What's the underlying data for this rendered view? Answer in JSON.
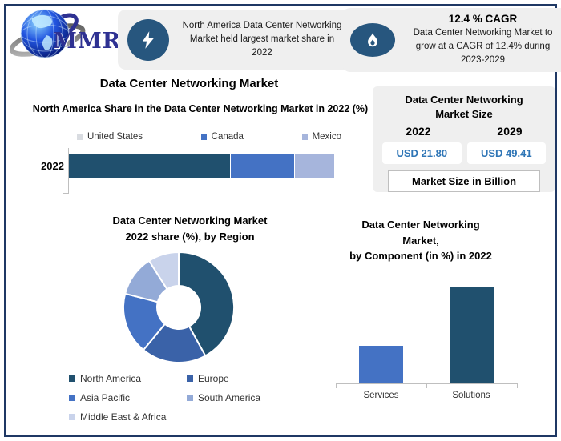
{
  "page": {
    "border_color": "#1F3864",
    "background": "#FFFFFF",
    "card_background": "#EFEFEF",
    "icon_circle_color": "#27567E",
    "accent_dark_blue": "#20506E",
    "accent_medium_blue": "#4472C4",
    "accent_light_blue": "#A6B5DC",
    "value_text_color": "#2E75B6"
  },
  "logo": {
    "text": "MMR"
  },
  "highlight_card": {
    "icon": "lightning-bolt-icon",
    "text": "North America Data Center Networking Market held largest market share in 2022"
  },
  "cagr_card": {
    "icon": "flame-icon",
    "title": "12.4 % CAGR",
    "text": "Data Center Networking Market to grow at a CAGR of 12.4% during 2023-2029"
  },
  "main_title": "Data Center Networking Market",
  "market_size_panel": {
    "title": "Data Center Networking Market Size",
    "years": [
      "2022",
      "2029"
    ],
    "values": [
      "USD 21.80",
      "USD 49.41"
    ],
    "footer": "Market Size in Billion"
  },
  "chart_data": [
    {
      "type": "bar",
      "subtype": "stacked-horizontal",
      "title": "North America Share in the Data Center Networking Market in 2022 (%)",
      "categories": [
        "2022"
      ],
      "series": [
        {
          "name": "United States",
          "values": [
            61
          ],
          "color": "#20506E",
          "legend_marker_color": "#D9DCE1"
        },
        {
          "name": "Canada",
          "values": [
            24
          ],
          "color": "#4472C4",
          "legend_marker_color": "#4472C4"
        },
        {
          "name": "Mexico",
          "values": [
            15
          ],
          "color": "#A6B5DC",
          "legend_marker_color": "#A6B5DC"
        }
      ],
      "xlim": [
        0,
        100
      ],
      "legend_position": "top",
      "grid": false
    },
    {
      "type": "pie",
      "subtype": "donut",
      "title": "Data Center Networking Market 2022 share (%), by Region",
      "title_lines": [
        "Data Center Networking Market",
        "2022 share (%), by Region"
      ],
      "labels": [
        "North America",
        "Europe",
        "Asia Pacific",
        "South America",
        "Middle East & Africa"
      ],
      "values": [
        42,
        19,
        18,
        12,
        9
      ],
      "colors": [
        "#20506E",
        "#3A62A8",
        "#4472C4",
        "#93AAD7",
        "#C9D3EB"
      ],
      "legend_position": "bottom"
    },
    {
      "type": "bar",
      "title": "Data Center Networking Market, by Component (in %) in 2022",
      "title_lines": [
        "Data Center Networking",
        "Market,",
        "by Component (in %) in 2022"
      ],
      "categories": [
        "Services",
        "Solutions"
      ],
      "values": [
        28,
        72
      ],
      "colors": [
        "#4472C4",
        "#20506E"
      ],
      "ylim": [
        0,
        100
      ],
      "grid": false
    }
  ]
}
